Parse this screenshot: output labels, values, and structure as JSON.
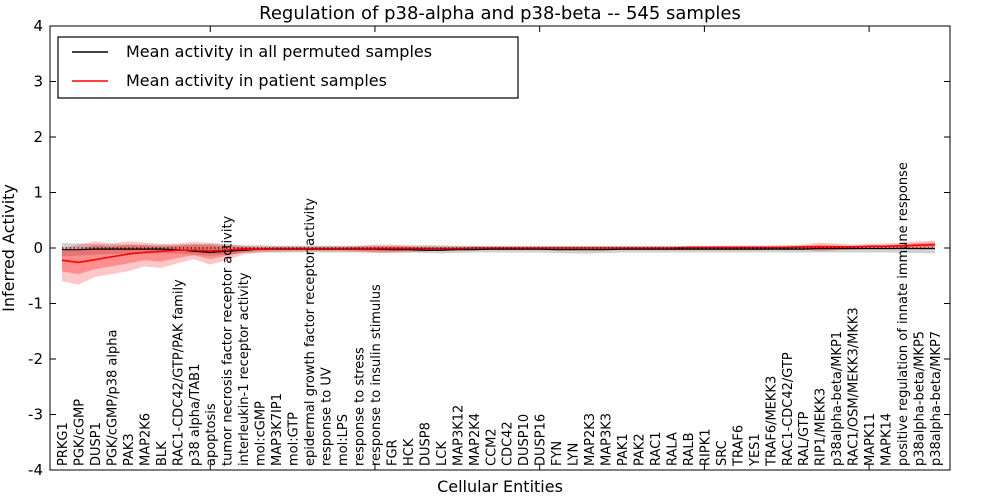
{
  "figure": {
    "title": "Regulation of p38-alpha and p38-beta -- 545 samples",
    "xlabel": "Cellular Entities",
    "ylabel": "Inferred Activity"
  },
  "legend": {
    "items": [
      {
        "label": "Mean activity in all permuted samples",
        "color": "#000000"
      },
      {
        "label": "Mean activity in patient samples",
        "color": "#ff0000"
      }
    ]
  },
  "chart_data": {
    "type": "line",
    "title": "Regulation of p38-alpha and p38-beta -- 545 samples",
    "xlabel": "Cellular Entities",
    "ylabel": "Inferred Activity",
    "ylim": [
      -4,
      4
    ],
    "y_ticks": [
      4,
      3,
      2,
      1,
      0,
      -1,
      -2,
      -3,
      -4
    ],
    "x_major_tick_indices": [
      9,
      19,
      29,
      39,
      49
    ],
    "grid": false,
    "legend_position": "upper left",
    "zero_line": {
      "style": "dotted",
      "color": "#000000",
      "y": 0
    },
    "categories": [
      "PRKG1",
      "PGK/cGMP",
      "DUSP1",
      "PGK/cGMP/p38 alpha",
      "PAK3",
      "MAP2K6",
      "BLK",
      "RAC1-CDC42/GTP/PAK family",
      "p38 alpha/TAB1",
      "apoptosis",
      "tumor necrosis factor receptor activity",
      "interleukin-1 receptor activity",
      "mol:cGMP",
      "MAP3K7IP1",
      "mol:GTP",
      "epidermal growth factor receptor activity",
      "response to UV",
      "mol:LPS",
      "response to stress",
      "response to insulin stimulus",
      "FGR",
      "HCK",
      "DUSP8",
      "LCK",
      "MAP3K12",
      "MAP2K4",
      "CCM2",
      "CDC42",
      "DUSP10",
      "DUSP16",
      "FYN",
      "LYN",
      "MAP2K3",
      "MAP3K3",
      "PAK1",
      "PAK2",
      "RAC1",
      "RALA",
      "RALB",
      "RIPK1",
      "SRC",
      "TRAF6",
      "YES1",
      "TRAF6/MEKK3",
      "RAC1-CDC42/GTP",
      "RAL/GTP",
      "RIP1/MEKK3",
      "p38alpha-beta/MKP1",
      "RAC1/OSM/MEKK3/MKK3",
      "MAPK11",
      "MAPK14",
      "positive regulation of innate immune response",
      "p38alpha-beta/MKP5",
      "p38alpha-beta/MKP7"
    ],
    "series": [
      {
        "name": "Mean activity in all permuted samples",
        "color": "#000000",
        "width": 1.2,
        "values": [
          -0.03,
          -0.03,
          -0.02,
          -0.02,
          -0.02,
          -0.02,
          -0.02,
          -0.03,
          -0.06,
          -0.08,
          -0.06,
          -0.04,
          -0.02,
          -0.02,
          -0.02,
          -0.02,
          -0.02,
          -0.02,
          -0.02,
          -0.02,
          -0.03,
          -0.03,
          -0.04,
          -0.04,
          -0.03,
          -0.03,
          -0.02,
          -0.02,
          -0.02,
          -0.02,
          -0.03,
          -0.03,
          -0.03,
          -0.03,
          -0.02,
          -0.02,
          -0.02,
          -0.02,
          -0.02,
          -0.02,
          -0.02,
          -0.02,
          -0.02,
          -0.02,
          -0.02,
          -0.02,
          -0.01,
          -0.01,
          -0.01,
          -0.01,
          -0.01,
          -0.01,
          -0.01,
          -0.01
        ]
      },
      {
        "name": "Mean activity in patient samples",
        "color": "#ff0000",
        "width": 1.6,
        "values": [
          -0.22,
          -0.26,
          -0.21,
          -0.16,
          -0.11,
          -0.08,
          -0.06,
          -0.04,
          -0.04,
          -0.05,
          -0.04,
          -0.02,
          -0.02,
          -0.01,
          -0.01,
          -0.01,
          -0.01,
          -0.01,
          -0.01,
          -0.01,
          -0.01,
          -0.01,
          -0.01,
          -0.01,
          -0.01,
          0,
          0,
          0,
          0,
          0,
          0,
          0,
          0,
          0,
          0,
          0,
          0,
          0,
          0.01,
          0.01,
          0.01,
          0.01,
          0.01,
          0.01,
          0.01,
          0.02,
          0.02,
          0.02,
          0.02,
          0.03,
          0.03,
          0.04,
          0.05,
          0.06
        ]
      }
    ],
    "bands": [
      {
        "name": "permuted-samples-range",
        "color": "#999999",
        "opacity": 0.45,
        "upper": [
          0.09,
          0.08,
          0.07,
          0.07,
          0.06,
          0.06,
          0.06,
          0.06,
          0.07,
          0.08,
          0.07,
          0.05,
          0.05,
          0.04,
          0.04,
          0.04,
          0.04,
          0.04,
          0.04,
          0.04,
          0.04,
          0.04,
          0.05,
          0.05,
          0.04,
          0.04,
          0.04,
          0.04,
          0.04,
          0.04,
          0.04,
          0.04,
          0.04,
          0.04,
          0.04,
          0.04,
          0.04,
          0.04,
          0.04,
          0.04,
          0.04,
          0.04,
          0.04,
          0.04,
          0.04,
          0.04,
          0.04,
          0.04,
          0.03,
          0.03,
          0.03,
          0.03,
          0.03,
          0.03
        ],
        "lower": [
          -0.15,
          -0.14,
          -0.12,
          -0.11,
          -0.1,
          -0.1,
          -0.1,
          -0.1,
          -0.12,
          -0.14,
          -0.12,
          -0.09,
          -0.08,
          -0.08,
          -0.08,
          -0.08,
          -0.08,
          -0.08,
          -0.08,
          -0.08,
          -0.08,
          -0.08,
          -0.09,
          -0.1,
          -0.09,
          -0.08,
          -0.08,
          -0.08,
          -0.08,
          -0.08,
          -0.09,
          -0.1,
          -0.1,
          -0.09,
          -0.08,
          -0.08,
          -0.08,
          -0.08,
          -0.08,
          -0.08,
          -0.08,
          -0.08,
          -0.08,
          -0.08,
          -0.08,
          -0.08,
          -0.08,
          -0.08,
          -0.08,
          -0.08,
          -0.08,
          -0.09,
          -0.09,
          -0.1
        ]
      },
      {
        "name": "patient-samples-range-outer",
        "color": "#ff0000",
        "opacity": 0.22,
        "upper": [
          0.0,
          0.06,
          0.12,
          0.08,
          0.12,
          0.1,
          0.07,
          0.08,
          0.11,
          0.09,
          0.06,
          0.04,
          0.03,
          0.03,
          0.03,
          0.03,
          0.03,
          0.03,
          0.04,
          0.06,
          0.06,
          0.05,
          0.04,
          0.03,
          0.03,
          0.03,
          0.03,
          0.03,
          0.03,
          0.03,
          0.03,
          0.03,
          0.03,
          0.03,
          0.03,
          0.03,
          0.03,
          0.03,
          0.03,
          0.03,
          0.04,
          0.04,
          0.04,
          0.04,
          0.05,
          0.06,
          0.1,
          0.08,
          0.06,
          0.07,
          0.08,
          0.1,
          0.12,
          0.13
        ],
        "lower": [
          -0.6,
          -0.66,
          -0.52,
          -0.47,
          -0.42,
          -0.33,
          -0.36,
          -0.28,
          -0.2,
          -0.3,
          -0.22,
          -0.12,
          -0.08,
          -0.07,
          -0.06,
          -0.06,
          -0.06,
          -0.06,
          -0.07,
          -0.09,
          -0.09,
          -0.08,
          -0.06,
          -0.05,
          -0.05,
          -0.04,
          -0.04,
          -0.04,
          -0.04,
          -0.04,
          -0.04,
          -0.04,
          -0.04,
          -0.04,
          -0.04,
          -0.04,
          -0.04,
          -0.04,
          -0.04,
          -0.04,
          -0.04,
          -0.04,
          -0.04,
          -0.03,
          -0.03,
          -0.03,
          -0.06,
          -0.04,
          -0.03,
          -0.02,
          -0.02,
          -0.01,
          0.0,
          0.0
        ]
      },
      {
        "name": "patient-samples-range-inner",
        "color": "#ff0000",
        "opacity": 0.28,
        "upper": [
          -0.05,
          -0.02,
          0.05,
          0.03,
          0.06,
          0.05,
          0.03,
          0.04,
          0.06,
          0.05,
          0.03,
          0.02,
          0.01,
          0.01,
          0.01,
          0.01,
          0.01,
          0.01,
          0.02,
          0.03,
          0.03,
          0.02,
          0.01,
          0.01,
          0.01,
          0.01,
          0.01,
          0.01,
          0.01,
          0.01,
          0.01,
          0.01,
          0.01,
          0.01,
          0.01,
          0.01,
          0.01,
          0.01,
          0.02,
          0.02,
          0.02,
          0.02,
          0.02,
          0.02,
          0.03,
          0.04,
          0.06,
          0.05,
          0.04,
          0.05,
          0.05,
          0.07,
          0.09,
          0.1
        ],
        "lower": [
          -0.42,
          -0.47,
          -0.38,
          -0.33,
          -0.28,
          -0.22,
          -0.24,
          -0.18,
          -0.13,
          -0.2,
          -0.14,
          -0.08,
          -0.05,
          -0.04,
          -0.04,
          -0.04,
          -0.04,
          -0.04,
          -0.05,
          -0.06,
          -0.06,
          -0.05,
          -0.04,
          -0.03,
          -0.03,
          -0.03,
          -0.03,
          -0.03,
          -0.03,
          -0.03,
          -0.03,
          -0.03,
          -0.03,
          -0.03,
          -0.03,
          -0.03,
          -0.03,
          -0.03,
          -0.03,
          -0.03,
          -0.02,
          -0.02,
          -0.02,
          -0.02,
          -0.01,
          -0.01,
          -0.04,
          -0.03,
          -0.02,
          -0.01,
          -0.01,
          0.0,
          0.01,
          0.02
        ]
      }
    ]
  }
}
